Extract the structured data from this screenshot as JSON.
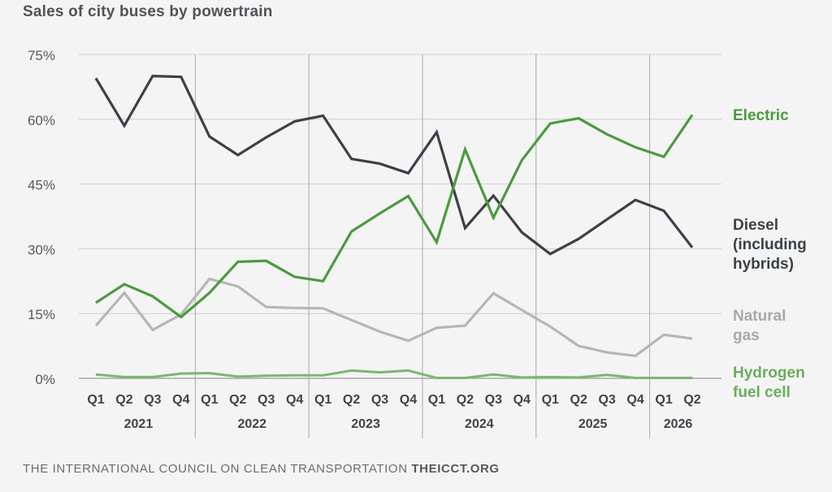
{
  "chart_data": {
    "type": "line",
    "title": "Sales of city buses by powertrain",
    "x": [
      "Q1",
      "Q2",
      "Q3",
      "Q4",
      "Q1",
      "Q2",
      "Q3",
      "Q4",
      "Q1",
      "Q2",
      "Q3",
      "Q4",
      "Q1",
      "Q2",
      "Q3",
      "Q4",
      "Q1",
      "Q2",
      "Q3",
      "Q4",
      "Q1",
      "Q2"
    ],
    "years": [
      {
        "label": "2021",
        "start": 0,
        "end": 3
      },
      {
        "label": "2022",
        "start": 4,
        "end": 7
      },
      {
        "label": "2023",
        "start": 8,
        "end": 11
      },
      {
        "label": "2024",
        "start": 12,
        "end": 15
      },
      {
        "label": "2025",
        "start": 16,
        "end": 19
      },
      {
        "label": "2026",
        "start": 20,
        "end": 21
      }
    ],
    "ylim": [
      0,
      75
    ],
    "yticks": [
      0,
      15,
      30,
      45,
      60,
      75
    ],
    "ytick_labels": [
      "0%",
      "15%",
      "30%",
      "45%",
      "60%",
      "75%"
    ],
    "grid": true,
    "series": [
      {
        "name": "Electric",
        "color": "#4a9a3e",
        "values": [
          17.5,
          21.8,
          19,
          14.2,
          19.8,
          27,
          27.2,
          23.5,
          22.5,
          34,
          38.2,
          42.2,
          31.5,
          53,
          37.2,
          50.5,
          59,
          60.2,
          56.5,
          53.5,
          51.3,
          61
        ]
      },
      {
        "name": "Diesel\n(including\nhybrids)",
        "color": "#3b4148",
        "values": [
          69.5,
          58.5,
          70,
          69.8,
          56,
          51.7,
          55.8,
          59.5,
          60.8,
          50.8,
          49.7,
          47.5,
          57,
          34.8,
          42.3,
          33.8,
          28.8,
          32.3,
          36.8,
          41.3,
          38.8,
          30.3
        ]
      },
      {
        "name": "Natural\ngas",
        "color": "#b6b6b6",
        "values": [
          12.2,
          19.8,
          11.2,
          14.8,
          23,
          21.3,
          16.5,
          16.3,
          16.2,
          13.5,
          10.8,
          8.7,
          11.7,
          12.2,
          19.7,
          15.8,
          12,
          7.5,
          6,
          5.2,
          10.1,
          9.2
        ]
      },
      {
        "name": "Hydrogen\nfuel cell",
        "color": "#7ab86e",
        "values": [
          0.9,
          0.3,
          0.3,
          1.1,
          1.2,
          0.4,
          0.6,
          0.7,
          0.7,
          1.8,
          1.4,
          1.8,
          0.1,
          0.1,
          0.9,
          0.2,
          0.3,
          0.2,
          0.8,
          0.1,
          0.1,
          0.1
        ]
      }
    ]
  },
  "footer": {
    "org": "THE INTERNATIONAL COUNCIL ON CLEAN TRANSPORTATION",
    "url": "THEICCT.ORG"
  }
}
